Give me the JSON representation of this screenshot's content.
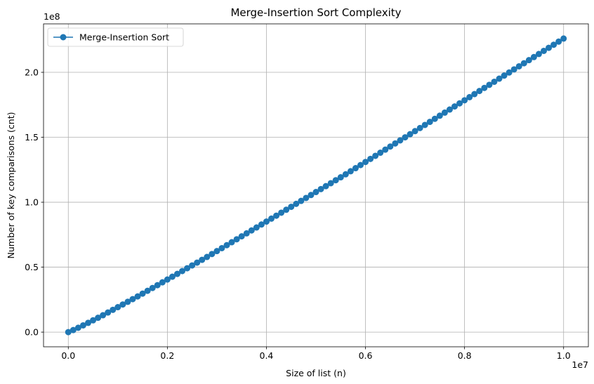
{
  "chart_data": {
    "type": "line",
    "title": "Merge-Insertion Sort Complexity",
    "xlabel": "Size of list (n)",
    "ylabel": "Number of key comparisons (cnt)",
    "x_offset_label": "1e7",
    "y_offset_label": "1e8",
    "xlim": [
      -500000,
      10500000
    ],
    "ylim": [
      -11300000,
      237300000
    ],
    "x_ticks": [
      0,
      2000000,
      4000000,
      6000000,
      8000000,
      10000000
    ],
    "x_tick_labels": [
      "0.0",
      "0.2",
      "0.4",
      "0.6",
      "0.8",
      "1.0"
    ],
    "y_ticks": [
      0,
      50000000,
      100000000,
      150000000,
      200000000
    ],
    "y_tick_labels": [
      "0.0",
      "0.5",
      "1.0",
      "1.5",
      "2.0"
    ],
    "grid": true,
    "legend_position": "top-left",
    "series": [
      {
        "name": "Merge-Insertion Sort",
        "color": "#1f77b4",
        "marker": "circle",
        "n_min": 0,
        "n_max": 10000000,
        "points": 101,
        "y_max": 226000000
      }
    ]
  }
}
